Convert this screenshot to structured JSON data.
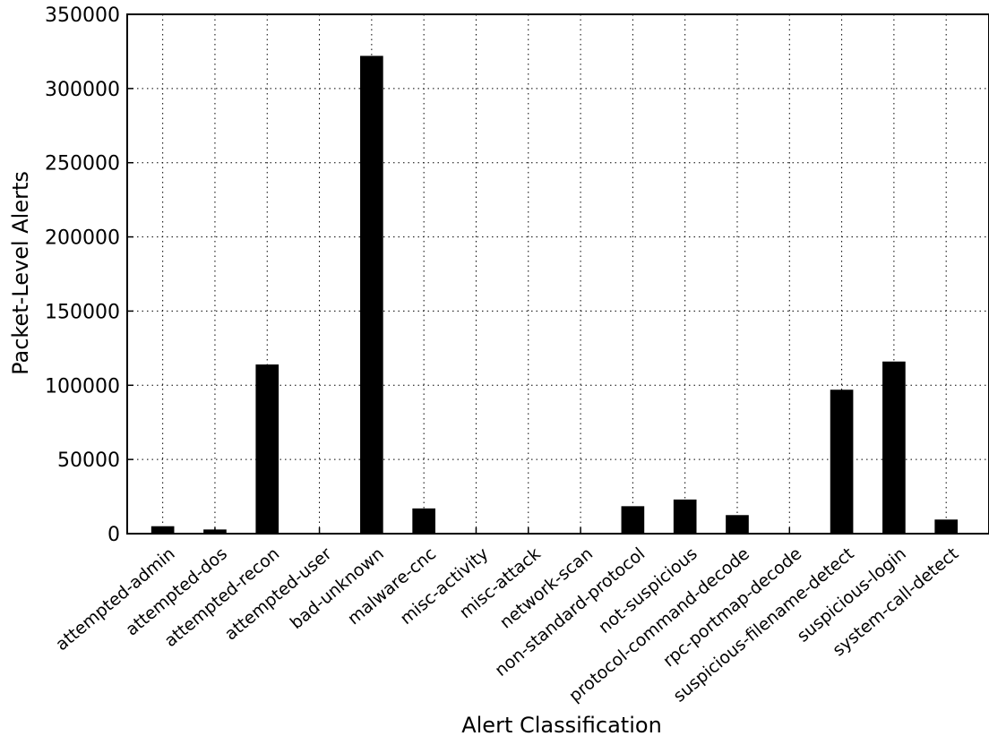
{
  "chart_data": {
    "type": "bar",
    "title": "",
    "xlabel": "Alert Classification",
    "ylabel": "Packet-Level Alerts",
    "ylim": [
      0,
      350000
    ],
    "yticks": [
      "0",
      "50000",
      "100000",
      "150000",
      "200000",
      "250000",
      "300000",
      "350000"
    ],
    "grid": true,
    "categories": [
      "attempted-admin",
      "attempted-dos",
      "attempted-recon",
      "attempted-user",
      "bad-unknown",
      "malware-cnc",
      "misc-activity",
      "misc-attack",
      "network-scan",
      "non-standard-protocol",
      "not-suspicious",
      "protocol-command-decode",
      "rpc-portmap-decode",
      "suspicious-filename-detect",
      "suspicious-login",
      "system-call-detect"
    ],
    "values": [
      5000,
      2800,
      114000,
      300,
      322000,
      17000,
      300,
      200,
      300,
      18500,
      23000,
      12500,
      300,
      97000,
      116000,
      9500
    ],
    "bar_color": "#000000"
  }
}
